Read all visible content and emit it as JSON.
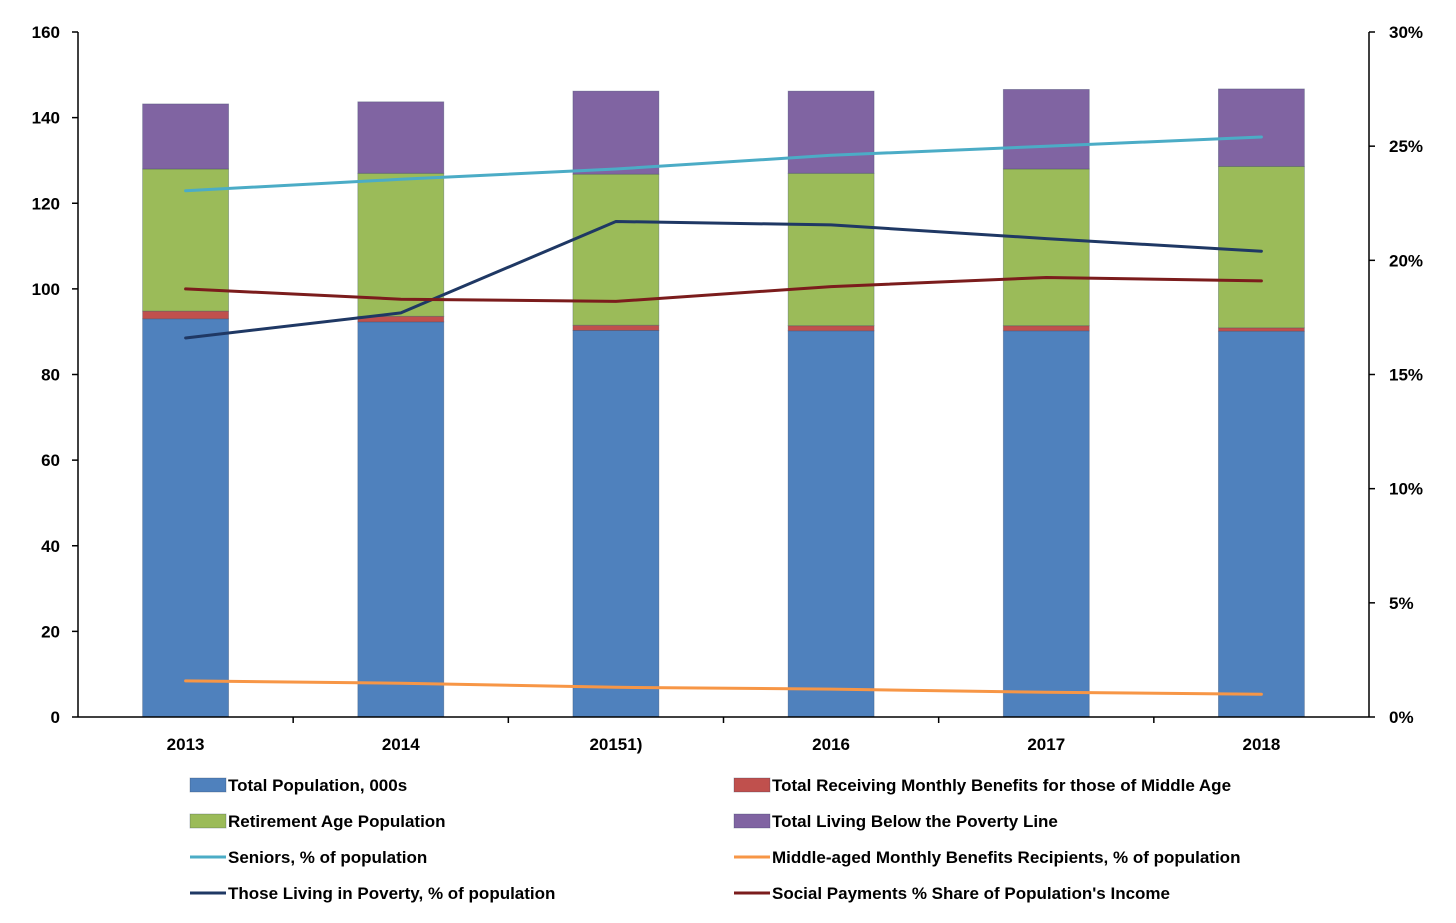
{
  "chart_data": {
    "type": "bar",
    "stacked": true,
    "categories": [
      "2013",
      "2014",
      "20151)",
      "2016",
      "2017",
      "2018"
    ],
    "y_left": {
      "min": 0,
      "max": 160,
      "step": 20,
      "ticks": [
        "0",
        "20",
        "40",
        "60",
        "80",
        "100",
        "120",
        "140",
        "160"
      ]
    },
    "y_right": {
      "min": 0,
      "max": 0.3,
      "step": 0.05,
      "ticks": [
        "0%",
        "5%",
        "10%",
        "15%",
        "20%",
        "25%",
        "30%"
      ]
    },
    "bar_series": [
      {
        "name": "Total Population, 000s",
        "color": "#4f81bd",
        "values": [
          93.0,
          92.3,
          90.3,
          90.2,
          90.2,
          90.1
        ]
      },
      {
        "name": "Total Receiving Monthly Benefits for those of Middle Age",
        "color": "#c0504d",
        "values": [
          1.8,
          1.3,
          1.2,
          1.2,
          1.2,
          0.8
        ]
      },
      {
        "name": "Retirement Age Population",
        "color": "#9bbb59",
        "values": [
          33.2,
          33.4,
          35.3,
          35.6,
          36.6,
          37.7
        ]
      },
      {
        "name": "Total Living Below the Poverty Line",
        "color": "#8064a2",
        "values": [
          15.2,
          16.7,
          19.4,
          19.2,
          18.6,
          18.1
        ]
      }
    ],
    "line_series": [
      {
        "name": "Seniors, % of population",
        "color": "#4bacc6",
        "axis": "right",
        "values": [
          0.2305,
          0.2355,
          0.24,
          0.246,
          0.25,
          0.254
        ]
      },
      {
        "name": "Middle-aged Monthly Benefits Recipients, % of population",
        "color": "#f79646",
        "axis": "right",
        "values": [
          0.0158,
          0.0148,
          0.013,
          0.0122,
          0.0108,
          0.01
        ]
      },
      {
        "name": "Those Living in Poverty, % of population",
        "color": "#1f3864",
        "axis": "right",
        "values": [
          0.166,
          0.177,
          0.217,
          0.2155,
          0.2095,
          0.204
        ]
      },
      {
        "name": "Social Payments % Share of Population's Income",
        "color": "#7b1c1c",
        "axis": "right",
        "values": [
          0.1875,
          0.183,
          0.182,
          0.1885,
          0.1925,
          0.191
        ]
      }
    ],
    "legend": {
      "position": "bottom",
      "items": [
        {
          "name": "Total Population, 000s",
          "kind": "box",
          "color": "#4f81bd"
        },
        {
          "name": "Total Receiving Monthly Benefits for those of Middle Age",
          "kind": "box",
          "color": "#c0504d"
        },
        {
          "name": "Retirement Age Population",
          "kind": "box",
          "color": "#9bbb59"
        },
        {
          "name": "Total Living Below the Poverty Line",
          "kind": "box",
          "color": "#8064a2"
        },
        {
          "name": "Seniors, % of population",
          "kind": "line",
          "color": "#4bacc6"
        },
        {
          "name": "Middle-aged Monthly Benefits Recipients, % of population",
          "kind": "line",
          "color": "#f79646"
        },
        {
          "name": "Those Living in Poverty, % of population",
          "kind": "line",
          "color": "#1f3864"
        },
        {
          "name": "Social Payments % Share of Population's Income",
          "kind": "line",
          "color": "#7b1c1c"
        }
      ]
    },
    "grid": false
  }
}
